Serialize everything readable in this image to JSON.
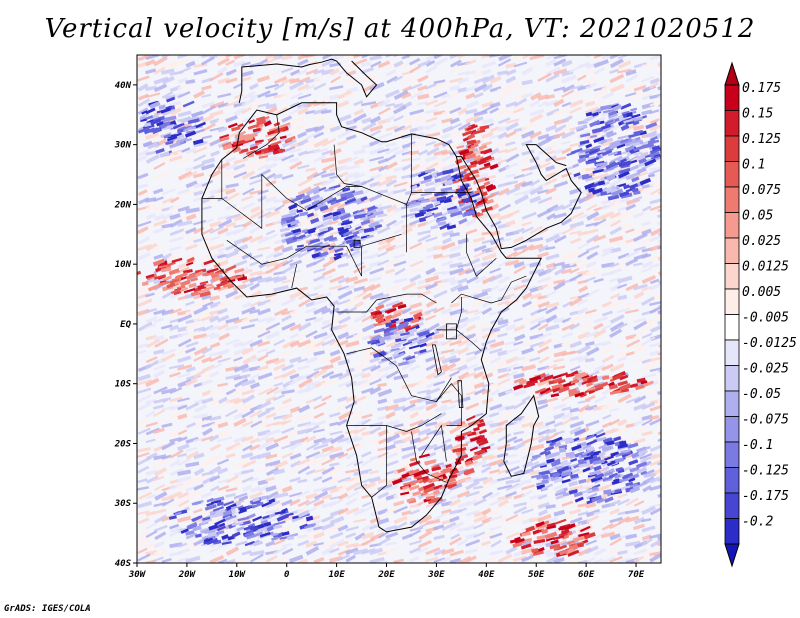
{
  "title": "Vertical velocity [m/s] at 400hPa, VT: 2021020512",
  "credit": "GrADS: IGES/COLA",
  "map": {
    "lon_range": [
      -30,
      75
    ],
    "lat_range": [
      -40,
      45
    ],
    "lon_ticks": [
      {
        "lon": -30,
        "label": "30W"
      },
      {
        "lon": -20,
        "label": "20W"
      },
      {
        "lon": -10,
        "label": "10W"
      },
      {
        "lon": 0,
        "label": "0"
      },
      {
        "lon": 10,
        "label": "10E"
      },
      {
        "lon": 20,
        "label": "20E"
      },
      {
        "lon": 30,
        "label": "30E"
      },
      {
        "lon": 40,
        "label": "40E"
      },
      {
        "lon": 50,
        "label": "50E"
      },
      {
        "lon": 60,
        "label": "60E"
      },
      {
        "lon": 70,
        "label": "70E"
      }
    ],
    "lat_ticks": [
      {
        "lat": -40,
        "label": "40S"
      },
      {
        "lat": -30,
        "label": "30S"
      },
      {
        "lat": -20,
        "label": "20S"
      },
      {
        "lat": -10,
        "label": "10S"
      },
      {
        "lat": 0,
        "label": "EQ"
      },
      {
        "lat": 10,
        "label": "10N"
      },
      {
        "lat": 20,
        "label": "20N"
      },
      {
        "lat": 30,
        "label": "30N"
      },
      {
        "lat": 40,
        "label": "40N"
      }
    ],
    "africa_outline": [
      [
        -17,
        21
      ],
      [
        -17,
        15
      ],
      [
        -15,
        11
      ],
      [
        -11,
        7
      ],
      [
        -8,
        4.5
      ],
      [
        -3,
        5
      ],
      [
        2,
        6
      ],
      [
        5,
        4
      ],
      [
        8,
        4.5
      ],
      [
        9.5,
        3
      ],
      [
        9,
        -1
      ],
      [
        11.5,
        -5
      ],
      [
        13,
        -9
      ],
      [
        13.5,
        -13
      ],
      [
        12,
        -17
      ],
      [
        14,
        -22
      ],
      [
        15,
        -27
      ],
      [
        17,
        -29
      ],
      [
        18.5,
        -34
      ],
      [
        20,
        -34.8
      ],
      [
        25,
        -34
      ],
      [
        28,
        -32
      ],
      [
        31,
        -29
      ],
      [
        32.5,
        -26
      ],
      [
        35,
        -22
      ],
      [
        35,
        -18
      ],
      [
        37,
        -17
      ],
      [
        40,
        -15
      ],
      [
        40.5,
        -10
      ],
      [
        39,
        -6
      ],
      [
        40,
        -3
      ],
      [
        41,
        -1
      ],
      [
        43,
        2
      ],
      [
        46,
        4
      ],
      [
        48,
        6
      ],
      [
        51,
        11
      ],
      [
        44,
        11
      ],
      [
        43,
        12
      ],
      [
        41,
        15
      ],
      [
        38,
        18
      ],
      [
        37,
        21
      ],
      [
        35,
        24
      ],
      [
        34,
        28
      ],
      [
        32.5,
        30
      ],
      [
        30,
        31
      ],
      [
        25,
        31.8
      ],
      [
        20,
        30.5
      ],
      [
        19,
        30.5
      ],
      [
        15,
        32
      ],
      [
        11,
        33
      ],
      [
        10,
        35
      ],
      [
        10,
        37
      ],
      [
        8,
        37
      ],
      [
        3,
        37
      ],
      [
        -2,
        35
      ],
      [
        -6,
        35.8
      ],
      [
        -9.5,
        32
      ],
      [
        -10,
        29.5
      ],
      [
        -13,
        27.5
      ],
      [
        -15,
        25
      ],
      [
        -17,
        21
      ]
    ],
    "madagascar_outline": [
      [
        49.5,
        -12
      ],
      [
        50.5,
        -15.5
      ],
      [
        49.5,
        -17
      ],
      [
        49,
        -20
      ],
      [
        47.5,
        -25
      ],
      [
        45,
        -25.5
      ],
      [
        43.5,
        -23
      ],
      [
        44,
        -20
      ],
      [
        44,
        -17
      ],
      [
        47,
        -15
      ],
      [
        49.5,
        -12
      ]
    ],
    "arabia_outline": [
      [
        34,
        28
      ],
      [
        35,
        28
      ],
      [
        36.5,
        26
      ],
      [
        38,
        24
      ],
      [
        39,
        22
      ],
      [
        40,
        19
      ],
      [
        42,
        16
      ],
      [
        43,
        12.6
      ],
      [
        45,
        12.8
      ],
      [
        48,
        14
      ],
      [
        52,
        16
      ],
      [
        55,
        17
      ],
      [
        57,
        18.5
      ],
      [
        59,
        22
      ],
      [
        57,
        24
      ],
      [
        56,
        26
      ],
      [
        52,
        24
      ],
      [
        51,
        25
      ],
      [
        50,
        27
      ],
      [
        48,
        30
      ],
      [
        50,
        30
      ],
      [
        54,
        27
      ],
      [
        56,
        26.5
      ]
    ],
    "europe_coast": [
      [
        -9.5,
        37
      ],
      [
        -9,
        39
      ],
      [
        -9,
        43
      ],
      [
        -2,
        43.5
      ],
      [
        3,
        43
      ],
      [
        4.5,
        43.4
      ],
      [
        7,
        43.8
      ],
      [
        9,
        44.3
      ],
      [
        10,
        44
      ],
      [
        12,
        42
      ],
      [
        15,
        40
      ],
      [
        16,
        38
      ],
      [
        18,
        40
      ],
      [
        16,
        41.5
      ],
      [
        13,
        44
      ]
    ],
    "country_lines": [
      [
        [
          -17,
          21
        ],
        [
          -13,
          21
        ],
        [
          -13,
          27.5
        ]
      ],
      [
        [
          -13,
          21
        ],
        [
          -5,
          16
        ],
        [
          -5,
          25
        ],
        [
          0,
          21
        ],
        [
          4,
          19
        ],
        [
          12,
          23
        ],
        [
          15,
          23
        ],
        [
          24,
          20
        ],
        [
          24,
          12
        ]
      ],
      [
        [
          -12,
          14
        ],
        [
          -5,
          10
        ],
        [
          0,
          11
        ],
        [
          4,
          13
        ],
        [
          12,
          13
        ],
        [
          15,
          8
        ],
        [
          15,
          13
        ],
        [
          23,
          15
        ]
      ],
      [
        [
          1,
          6
        ],
        [
          2,
          10
        ]
      ],
      [
        [
          10,
          2
        ],
        [
          16,
          2
        ],
        [
          18,
          4
        ],
        [
          24,
          5
        ],
        [
          27,
          5
        ],
        [
          30,
          3.5
        ]
      ],
      [
        [
          12,
          -5
        ],
        [
          17,
          -4
        ],
        [
          22,
          -7
        ],
        [
          25,
          -12
        ],
        [
          30,
          -13
        ],
        [
          33,
          -9
        ]
      ],
      [
        [
          12,
          -17
        ],
        [
          20,
          -17
        ],
        [
          24,
          -18
        ],
        [
          27,
          -17
        ],
        [
          31,
          -15
        ]
      ],
      [
        [
          20,
          -17
        ],
        [
          20,
          -22
        ],
        [
          20,
          -27
        ],
        [
          17,
          -29
        ]
      ],
      [
        [
          25,
          -18
        ],
        [
          26,
          -23
        ],
        [
          28,
          -25
        ],
        [
          32,
          -26.5
        ]
      ],
      [
        [
          24,
          20
        ],
        [
          25,
          22
        ],
        [
          31.5,
          22
        ],
        [
          37,
          22
        ]
      ],
      [
        [
          25,
          22
        ],
        [
          25,
          31.7
        ]
      ],
      [
        [
          9.5,
          30
        ],
        [
          10,
          25
        ],
        [
          11.5,
          23.5
        ],
        [
          15,
          23
        ]
      ],
      [
        [
          -2,
          35
        ],
        [
          -1.5,
          32
        ],
        [
          -4,
          30
        ],
        [
          -8.7,
          27.7
        ]
      ],
      [
        [
          33,
          3.5
        ],
        [
          35,
          5
        ],
        [
          41,
          3.5
        ],
        [
          43,
          4
        ],
        [
          45,
          7
        ],
        [
          48,
          8
        ]
      ],
      [
        [
          36,
          15
        ],
        [
          36,
          12
        ],
        [
          38,
          8
        ],
        [
          42,
          11
        ]
      ],
      [
        [
          30,
          -1
        ],
        [
          34,
          -1
        ],
        [
          37,
          -3
        ],
        [
          39,
          -4.5
        ]
      ],
      [
        [
          34,
          -1
        ],
        [
          35,
          2
        ],
        [
          35,
          4.5
        ]
      ],
      [
        [
          30,
          -13
        ],
        [
          33,
          -10
        ],
        [
          35,
          -12
        ],
        [
          35,
          -17
        ],
        [
          32,
          -17
        ]
      ],
      [
        [
          32,
          -23
        ],
        [
          31,
          -17
        ],
        [
          27,
          -22
        ]
      ]
    ],
    "lakes": [
      [
        [
          32,
          0
        ],
        [
          34,
          0
        ],
        [
          34,
          -2.5
        ],
        [
          32,
          -2.5
        ],
        [
          32,
          0
        ]
      ],
      [
        [
          29.2,
          -3.5
        ],
        [
          29.8,
          -3.5
        ],
        [
          31,
          -8
        ],
        [
          30.3,
          -8.5
        ],
        [
          29.2,
          -3.5
        ]
      ],
      [
        [
          34.3,
          -9.5
        ],
        [
          35,
          -9.5
        ],
        [
          35.3,
          -14
        ],
        [
          34.6,
          -14
        ],
        [
          34.3,
          -9.5
        ]
      ],
      [
        [
          13.5,
          14
        ],
        [
          14.7,
          14
        ],
        [
          14.7,
          12.8
        ],
        [
          13.5,
          12.8
        ],
        [
          13.5,
          14
        ]
      ]
    ],
    "features": [
      {
        "name": "red-band-morocco",
        "sign": 1,
        "lon": -7,
        "lat": 31,
        "rx": 7,
        "ry": 3.5
      },
      {
        "name": "red-band-nile",
        "sign": 1,
        "lon": 37,
        "lat": 26,
        "rx": 4,
        "ry": 8
      },
      {
        "name": "red-band-north-atlantic",
        "sign": 1,
        "lon": -20,
        "lat": 8,
        "rx": 11,
        "ry": 3
      },
      {
        "name": "red-patch-congo",
        "sign": 1,
        "lon": 21,
        "lat": 1,
        "rx": 5,
        "ry": 2.5
      },
      {
        "name": "red-patch-southern-africa",
        "sign": 1,
        "lon": 27,
        "lat": -26,
        "rx": 6,
        "ry": 4
      },
      {
        "name": "red-band-indian-ocean",
        "sign": 1,
        "lon": 58,
        "lat": -10,
        "rx": 14,
        "ry": 2
      },
      {
        "name": "red-band-south-madagascar",
        "sign": 1,
        "lon": 52,
        "lat": -36,
        "rx": 8,
        "ry": 3
      },
      {
        "name": "red-patch-mozambique",
        "sign": 1,
        "lon": 36,
        "lat": -20,
        "rx": 3,
        "ry": 5
      },
      {
        "name": "blue-vortex-atlantic",
        "sign": -1,
        "lon": -24,
        "lat": 33,
        "rx": 6,
        "ry": 5
      },
      {
        "name": "blue-patch-egypt",
        "sign": -1,
        "lon": 30,
        "lat": 21,
        "rx": 7,
        "ry": 5
      },
      {
        "name": "blue-patch-arabia",
        "sign": -1,
        "lon": 65,
        "lat": 29,
        "rx": 9,
        "ry": 8
      },
      {
        "name": "blue-patch-sahel",
        "sign": -1,
        "lon": 8,
        "lat": 17,
        "rx": 10,
        "ry": 6
      },
      {
        "name": "blue-patch-congo",
        "sign": -1,
        "lon": 22,
        "lat": -3,
        "rx": 6,
        "ry": 4
      },
      {
        "name": "blue-patch-south-atlantic",
        "sign": -1,
        "lon": -10,
        "lat": -33,
        "rx": 14,
        "ry": 4
      },
      {
        "name": "blue-patch-indian-ocean",
        "sign": -1,
        "lon": 60,
        "lat": -24,
        "rx": 12,
        "ry": 6
      }
    ]
  },
  "colorbar": {
    "levels": [
      {
        "label": "0.175",
        "color": "#c8001a"
      },
      {
        "label": "0.15",
        "color": "#d21c2c"
      },
      {
        "label": "0.125",
        "color": "#dc3c3c"
      },
      {
        "label": "0.1",
        "color": "#e55a55"
      },
      {
        "label": "0.075",
        "color": "#ee7a70"
      },
      {
        "label": "0.05",
        "color": "#f59a8e"
      },
      {
        "label": "0.025",
        "color": "#f9b8ae"
      },
      {
        "label": "0.0125",
        "color": "#fcd5cd"
      },
      {
        "label": "0.005",
        "color": "#feeeea"
      },
      {
        "label": "-0.005",
        "color": "#ffffff"
      },
      {
        "label": "-0.0125",
        "color": "#e6e6fa"
      },
      {
        "label": "-0.025",
        "color": "#cacaf5"
      },
      {
        "label": "-0.05",
        "color": "#afafef"
      },
      {
        "label": "-0.075",
        "color": "#9494e9"
      },
      {
        "label": "-0.1",
        "color": "#7a7ae2"
      },
      {
        "label": "-0.125",
        "color": "#6060db"
      },
      {
        "label": "-0.175",
        "color": "#4646d2"
      },
      {
        "label": "-0.2",
        "color": "#2c2cc8"
      }
    ],
    "top_arrow_color": "#b30015",
    "bottom_arrow_color": "#1616b8"
  }
}
